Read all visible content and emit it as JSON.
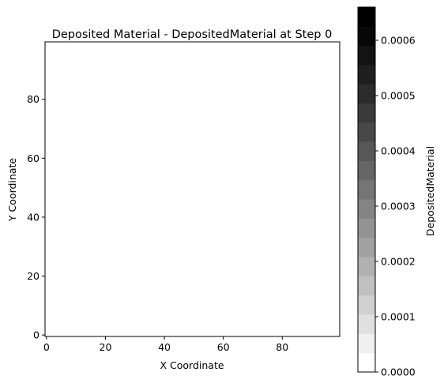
{
  "chart_data": [
    {
      "type": "heatmap",
      "title": "Deposited Material - DepositedMaterial at Step 0",
      "xlabel": "X Coordinate",
      "ylabel": "Y Coordinate",
      "xlim": [
        -0.5,
        99.5
      ],
      "ylim": [
        -0.5,
        99.5
      ],
      "xticks": [
        0,
        20,
        40,
        60,
        80
      ],
      "yticks": [
        0,
        20,
        40,
        60,
        80
      ],
      "xtick_labels": [
        "0",
        "20",
        "40",
        "60",
        "80"
      ],
      "ytick_labels": [
        "0",
        "20",
        "40",
        "60",
        "80"
      ],
      "values_description": "all cells 0 (blank field)",
      "grid": false
    },
    {
      "type": "colorbar",
      "label": "DepositedMaterial",
      "colormap": "Greys (discrete, 19 levels)",
      "range": [
        0,
        0.00066
      ],
      "ticks": [
        0,
        0.0001,
        0.0002,
        0.0003,
        0.0004,
        0.0005,
        0.0006
      ],
      "tick_labels": [
        "0.0000",
        "0.0001",
        "0.0002",
        "0.0003",
        "0.0004",
        "0.0005",
        "0.0006"
      ],
      "levels": [
        "#ffffff",
        "#f0f0f0",
        "#e0e0e0",
        "#d0d0d0",
        "#c0c0c0",
        "#b1b1b1",
        "#a2a2a2",
        "#939393",
        "#848484",
        "#757575",
        "#666666",
        "#575757",
        "#484848",
        "#3a3a3a",
        "#2c2c2c",
        "#1f1f1f",
        "#131313",
        "#080808",
        "#000000"
      ]
    }
  ]
}
